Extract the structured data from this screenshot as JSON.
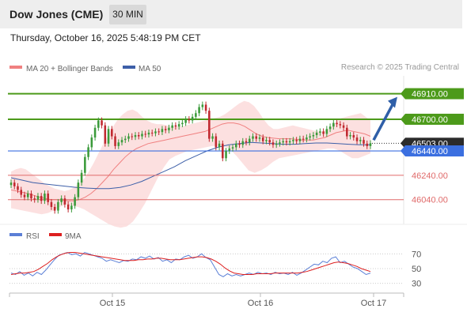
{
  "header": {
    "title": "Dow Jones (CME)",
    "timeframe": "30 MIN",
    "datetime": "Thursday, October 16, 2025 5:48:19 PM CET",
    "credit": "Research © 2025 Trading Central"
  },
  "legend": {
    "ma20": "MA 20 + Bollinger Bands",
    "ma50": "MA 50",
    "rsi": "RSI",
    "rsi_ma": "9MA"
  },
  "colors": {
    "up": "#3a9a3a",
    "down": "#c0282f",
    "ma20": "#f08080",
    "bands": "#fbd3d3",
    "ma50": "#3d5fa8",
    "resistance": "#4c9a1a",
    "support": "#e06a6a",
    "pivot": "#3b6fe0",
    "arrow": "#2f5fa8",
    "rsi": "#5b7fd6",
    "rsi_ma": "#dd1f1f"
  },
  "chart_data": [
    {
      "type": "candlestick",
      "x_labels": [
        "Oct 15",
        "Oct 16",
        "Oct 17"
      ],
      "ylim": [
        45850,
        47050
      ],
      "levels": [
        {
          "label": "46910.00",
          "value": 46910,
          "kind": "resistance"
        },
        {
          "label": "46700.00",
          "value": 46700,
          "kind": "resistance"
        },
        {
          "label": "46503.00",
          "value": 46503,
          "kind": "last"
        },
        {
          "label": "46440.00",
          "value": 46440,
          "kind": "pivot"
        },
        {
          "label": "46240.00",
          "value": 46240,
          "kind": "support"
        },
        {
          "label": "46040.00",
          "value": 46040,
          "kind": "support"
        }
      ],
      "close": [
        46180,
        46150,
        46120,
        46080,
        46060,
        46090,
        46050,
        46040,
        46070,
        46030,
        46090,
        46020,
        45980,
        45950,
        46020,
        46050,
        46000,
        45960,
        45990,
        46060,
        46180,
        46260,
        46390,
        46470,
        46550,
        46630,
        46690,
        46650,
        46500,
        46620,
        46560,
        46480,
        46510,
        46530,
        46540,
        46560,
        46555,
        46570,
        46560,
        46580,
        46575,
        46590,
        46585,
        46600,
        46595,
        46620,
        46610,
        46630,
        46650,
        46640,
        46660,
        46670,
        46700,
        46690,
        46720,
        46750,
        46800,
        46820,
        46770,
        46540,
        46560,
        46470,
        46500,
        46380,
        46440,
        46460,
        46470,
        46500,
        46490,
        46520,
        46510,
        46540,
        46560,
        46540,
        46550,
        46520,
        46530,
        46510,
        46490,
        46500,
        46510,
        46520,
        46510,
        46520,
        46530,
        46520,
        46540,
        46535,
        46550,
        46560,
        46570,
        46590,
        46600,
        46580,
        46620,
        46640,
        46670,
        46660,
        46650,
        46630,
        46560,
        46570,
        46550,
        46520,
        46530,
        46500,
        46480,
        46503
      ],
      "bb_upper": [
        46270,
        46290,
        46300,
        46290,
        46260,
        46230,
        46200,
        46170,
        46150,
        46130,
        46120,
        46110,
        46120,
        46140,
        46170,
        46210,
        46270,
        46340,
        46420,
        46500,
        46570,
        46640,
        46700,
        46740,
        46770,
        46780,
        46760,
        46720,
        46690,
        46670,
        46660,
        46660,
        46650,
        46640,
        46640,
        46640,
        46650,
        46660,
        46670,
        46680,
        46690,
        46700,
        46710,
        46720,
        46740,
        46770,
        46800,
        46830,
        46850,
        46840,
        46810,
        46760,
        46700,
        46650,
        46620,
        46620,
        46630,
        46640,
        46650,
        46640,
        46630,
        46620,
        46610,
        46600,
        46600,
        46610,
        46640,
        46680,
        46710,
        46720,
        46730,
        46740,
        46750,
        46720,
        46690
      ],
      "bb_lower": [
        45970,
        45960,
        45950,
        45940,
        45930,
        45920,
        45930,
        45950,
        45980,
        46000,
        45990,
        45980,
        45960,
        45930,
        45900,
        45870,
        45840,
        45820,
        45810,
        45820,
        45860,
        45930,
        46010,
        46110,
        46210,
        46300,
        46370,
        46400,
        46420,
        46440,
        46450,
        46460,
        46470,
        46480,
        46480,
        46480,
        46450,
        46400,
        46340,
        46280,
        46260,
        46280,
        46310,
        46350,
        46380,
        46390,
        46400,
        46410,
        46420,
        46430,
        46440,
        46450,
        46460,
        46460,
        46440,
        46410,
        46380,
        46380,
        46400,
        46420
      ],
      "ma20": [
        46120,
        46110,
        46100,
        46090,
        46075,
        46060,
        46050,
        46040,
        46040,
        46035,
        46030,
        46030,
        46040,
        46060,
        46090,
        46130,
        46180,
        46230,
        46290,
        46340,
        46390,
        46430,
        46460,
        46480,
        46500,
        46510,
        46520,
        46530,
        46540,
        46550,
        46560,
        46570,
        46580,
        46590,
        46600,
        46620,
        46640,
        46660,
        46670,
        46670,
        46660,
        46640,
        46610,
        46580,
        46560,
        46550,
        46545,
        46540,
        46540,
        46540,
        46535,
        46530,
        46530,
        46530,
        46540,
        46550,
        46570,
        46590,
        46600,
        46610,
        46600,
        46590,
        46580,
        46560
      ],
      "ma50": [
        46220,
        46200,
        46180,
        46170,
        46160,
        46150,
        46140,
        46135,
        46130,
        46130,
        46140,
        46160,
        46190,
        46230,
        46270,
        46310,
        46360,
        46400,
        46440,
        46470,
        46490,
        46500,
        46510,
        46505,
        46500,
        46495,
        46495,
        46500,
        46505,
        46505,
        46500,
        46495,
        46490,
        46490
      ]
    },
    {
      "type": "line",
      "title": "RSI",
      "yticks": [
        30,
        50,
        70
      ],
      "ylim": [
        20,
        80
      ],
      "rsi": [
        44,
        42,
        46,
        41,
        44,
        40,
        45,
        42,
        48,
        55,
        62,
        68,
        70,
        72,
        69,
        70,
        67,
        72,
        70,
        68,
        66,
        64,
        60,
        62,
        60,
        58,
        61,
        60,
        63,
        62,
        66,
        64,
        67,
        63,
        65,
        60,
        62,
        58,
        63,
        62,
        66,
        68,
        64,
        66,
        70,
        65,
        62,
        52,
        42,
        39,
        43,
        40,
        42,
        40,
        42,
        44,
        42,
        45,
        43,
        44,
        42,
        45,
        43,
        44,
        42,
        45,
        41,
        44,
        48,
        52,
        56,
        55,
        60,
        58,
        64,
        66,
        58,
        60,
        56,
        52,
        50,
        46,
        42,
        44
      ],
      "ma9": [
        42,
        43,
        44,
        44,
        45,
        46,
        49,
        53,
        57,
        62,
        66,
        69,
        71,
        72,
        72,
        71,
        70,
        69,
        68,
        67,
        66,
        65,
        64,
        63,
        62,
        61,
        61,
        61,
        62,
        62,
        63,
        63,
        64,
        64,
        63,
        62,
        62,
        62,
        63,
        64,
        65,
        66,
        66,
        65,
        63,
        60,
        56,
        51,
        47,
        44,
        43,
        42,
        42,
        42,
        43,
        43,
        43,
        43,
        44,
        44,
        44,
        44,
        44,
        44,
        45,
        46,
        48,
        50,
        52,
        54,
        56,
        58,
        59,
        58,
        57,
        55,
        53,
        50,
        48,
        46
      ]
    }
  ]
}
